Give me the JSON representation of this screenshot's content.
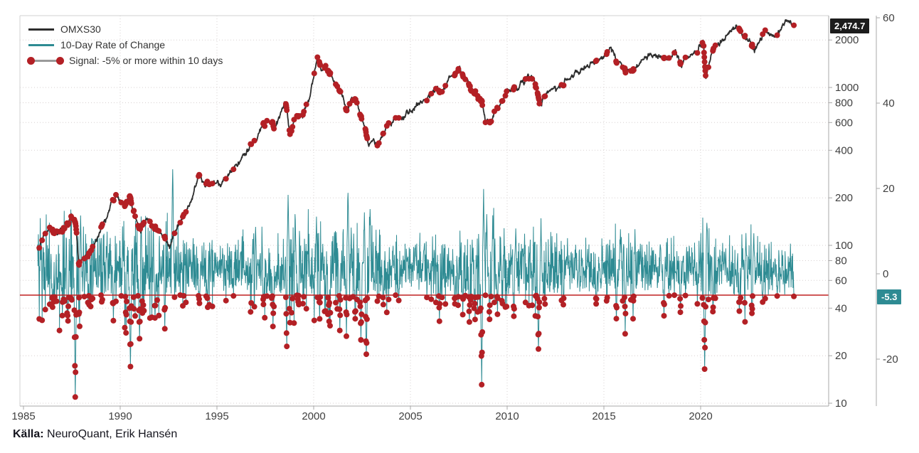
{
  "legend": {
    "items": [
      {
        "label": "OMXS30"
      },
      {
        "label": "10-Day Rate of Change"
      },
      {
        "label": "Signal: -5% or more within 10 days"
      }
    ]
  },
  "badges": {
    "price_last": "2,474.7",
    "roc_last": "-5.3"
  },
  "footer": {
    "source_label": "Källa:",
    "source_text": " NeuroQuant, Erik Hansén"
  },
  "chart_data": {
    "type": "line",
    "title": "",
    "x_range": [
      1985.72,
      2024.82
    ],
    "x_axis": {
      "ticks": [
        1985,
        1990,
        1995,
        2000,
        2005,
        2010,
        2015,
        2020
      ]
    },
    "price_axis": {
      "scale": "log",
      "ticks": [
        2000,
        1000,
        800,
        600,
        400,
        200,
        100,
        80,
        60,
        40,
        20,
        10
      ],
      "last_value": 2474.7
    },
    "roc_axis": {
      "ticks": [
        60,
        40,
        20,
        0,
        -20
      ],
      "last_value": -5.3
    },
    "signal_threshold": -5,
    "legend_position": "top-left",
    "grid": true,
    "series": [
      {
        "name": "OMXS30",
        "type": "line",
        "color": "#2d2d2d",
        "keypoints": [
          [
            1985.75,
            92
          ],
          [
            1986.1,
            118
          ],
          [
            1986.45,
            130
          ],
          [
            1986.75,
            118
          ],
          [
            1987.1,
            128
          ],
          [
            1987.55,
            152
          ],
          [
            1987.7,
            138
          ],
          [
            1987.85,
            80
          ],
          [
            1988.1,
            82
          ],
          [
            1988.6,
            100
          ],
          [
            1989.1,
            135
          ],
          [
            1989.55,
            185
          ],
          [
            1989.9,
            205
          ],
          [
            1990.2,
            175
          ],
          [
            1990.5,
            195
          ],
          [
            1990.8,
            150
          ],
          [
            1991.05,
            122
          ],
          [
            1991.35,
            152
          ],
          [
            1991.7,
            135
          ],
          [
            1992.1,
            120
          ],
          [
            1992.55,
            98
          ],
          [
            1992.75,
            118
          ],
          [
            1993.2,
            148
          ],
          [
            1993.7,
            195
          ],
          [
            1994.05,
            272
          ],
          [
            1994.4,
            238
          ],
          [
            1994.8,
            250
          ],
          [
            1995.2,
            242
          ],
          [
            1995.7,
            290
          ],
          [
            1996.2,
            340
          ],
          [
            1996.8,
            430
          ],
          [
            1997.4,
            580
          ],
          [
            1997.75,
            620
          ],
          [
            1997.95,
            545
          ],
          [
            1998.35,
            720
          ],
          [
            1998.55,
            815
          ],
          [
            1998.78,
            495
          ],
          [
            1999.05,
            640
          ],
          [
            1999.4,
            670
          ],
          [
            1999.75,
            800
          ],
          [
            2000.05,
            1280
          ],
          [
            2000.2,
            1480
          ],
          [
            2000.4,
            1290
          ],
          [
            2000.55,
            1390
          ],
          [
            2000.8,
            1230
          ],
          [
            2001.1,
            1010
          ],
          [
            2001.45,
            900
          ],
          [
            2001.72,
            690
          ],
          [
            2001.95,
            860
          ],
          [
            2002.25,
            810
          ],
          [
            2002.6,
            590
          ],
          [
            2002.85,
            445
          ],
          [
            2003.1,
            480
          ],
          [
            2003.25,
            420
          ],
          [
            2003.7,
            540
          ],
          [
            2004.1,
            610
          ],
          [
            2004.6,
            640
          ],
          [
            2005.1,
            720
          ],
          [
            2005.6,
            800
          ],
          [
            2006.1,
            920
          ],
          [
            2006.4,
            1010
          ],
          [
            2006.55,
            880
          ],
          [
            2007.0,
            1120
          ],
          [
            2007.55,
            1280
          ],
          [
            2007.85,
            1130
          ],
          [
            2008.15,
            980
          ],
          [
            2008.45,
            920
          ],
          [
            2008.7,
            800
          ],
          [
            2008.88,
            610
          ],
          [
            2009.15,
            590
          ],
          [
            2009.6,
            780
          ],
          [
            2010.05,
            950
          ],
          [
            2010.5,
            1020
          ],
          [
            2011.1,
            1170
          ],
          [
            2011.4,
            1120
          ],
          [
            2011.68,
            790
          ],
          [
            2011.95,
            880
          ],
          [
            2012.3,
            990
          ],
          [
            2012.55,
            950
          ],
          [
            2013.0,
            1110
          ],
          [
            2013.5,
            1210
          ],
          [
            2014.05,
            1340
          ],
          [
            2014.55,
            1400
          ],
          [
            2015.3,
            1730
          ],
          [
            2015.75,
            1480
          ],
          [
            2016.1,
            1270
          ],
          [
            2016.55,
            1350
          ],
          [
            2017.1,
            1530
          ],
          [
            2017.55,
            1640
          ],
          [
            2018.05,
            1580
          ],
          [
            2018.35,
            1540
          ],
          [
            2018.7,
            1660
          ],
          [
            2019.0,
            1410
          ],
          [
            2019.45,
            1580
          ],
          [
            2019.95,
            1790
          ],
          [
            2020.15,
            1880
          ],
          [
            2020.27,
            1160
          ],
          [
            2020.6,
            1680
          ],
          [
            2021.05,
            1950
          ],
          [
            2021.55,
            2280
          ],
          [
            2021.95,
            2440
          ],
          [
            2022.25,
            2090
          ],
          [
            2022.5,
            1980
          ],
          [
            2022.78,
            1710
          ],
          [
            2023.1,
            2080
          ],
          [
            2023.35,
            2230
          ],
          [
            2023.65,
            2120
          ],
          [
            2023.85,
            2080
          ],
          [
            2024.1,
            2330
          ],
          [
            2024.45,
            2580
          ],
          [
            2024.6,
            2460
          ],
          [
            2024.82,
            2474.7
          ]
        ]
      },
      {
        "name": "10-Day Rate of Change",
        "type": "line",
        "color": "#2e8b93",
        "mean": 1.1,
        "volatility_keypoints": [
          [
            1985.7,
            5.2
          ],
          [
            1987.5,
            5.8
          ],
          [
            1988.5,
            4.6
          ],
          [
            1990.0,
            5.2
          ],
          [
            1992.8,
            4.6
          ],
          [
            1994.0,
            3.6
          ],
          [
            1995.5,
            3.2
          ],
          [
            1997.0,
            4.4
          ],
          [
            1998.8,
            5.0
          ],
          [
            2000.0,
            5.2
          ],
          [
            2002.9,
            5.4
          ],
          [
            2003.8,
            3.8
          ],
          [
            2005.0,
            3.0
          ],
          [
            2006.4,
            3.6
          ],
          [
            2007.5,
            4.0
          ],
          [
            2008.8,
            6.0
          ],
          [
            2009.6,
            4.6
          ],
          [
            2010.5,
            3.8
          ],
          [
            2011.7,
            5.0
          ],
          [
            2012.5,
            3.6
          ],
          [
            2014.0,
            2.8
          ],
          [
            2015.8,
            3.8
          ],
          [
            2016.6,
            3.4
          ],
          [
            2017.5,
            2.6
          ],
          [
            2018.9,
            3.6
          ],
          [
            2019.5,
            3.0
          ],
          [
            2020.25,
            5.8
          ],
          [
            2020.8,
            3.6
          ],
          [
            2021.5,
            3.0
          ],
          [
            2022.5,
            3.8
          ],
          [
            2023.5,
            3.0
          ],
          [
            2024.8,
            2.8
          ]
        ],
        "spikes": [
          [
            1986.5,
            -8
          ],
          [
            1987.3,
            -11
          ],
          [
            1987.68,
            -28.5
          ],
          [
            1987.9,
            -13
          ],
          [
            1987.95,
            14
          ],
          [
            1988.4,
            -7
          ],
          [
            1989.65,
            -10
          ],
          [
            1990.3,
            -14
          ],
          [
            1990.52,
            -21
          ],
          [
            1991.0,
            -15
          ],
          [
            1991.08,
            13
          ],
          [
            1991.8,
            -10
          ],
          [
            1992.3,
            -12
          ],
          [
            1992.72,
            26
          ],
          [
            1994.1,
            -7.5
          ],
          [
            1994.5,
            -6.5
          ],
          [
            1997.0,
            12
          ],
          [
            1997.4,
            -7
          ],
          [
            1997.9,
            -12
          ],
          [
            1998.62,
            -17.5
          ],
          [
            1998.68,
            19
          ],
          [
            1999.05,
            13
          ],
          [
            1999.2,
            -7
          ],
          [
            2000.15,
            14
          ],
          [
            2000.3,
            -10
          ],
          [
            2000.8,
            -11
          ],
          [
            2001.35,
            -13
          ],
          [
            2001.7,
            -14
          ],
          [
            2001.78,
            20
          ],
          [
            2002.15,
            -12
          ],
          [
            2002.45,
            -15
          ],
          [
            2002.62,
            14
          ],
          [
            2002.72,
            -20
          ],
          [
            2002.92,
            15
          ],
          [
            2003.6,
            -7
          ],
          [
            2004.4,
            -7
          ],
          [
            2006.5,
            -11
          ],
          [
            2007.3,
            -7
          ],
          [
            2007.7,
            -9
          ],
          [
            2008.05,
            -12
          ],
          [
            2008.35,
            -9
          ],
          [
            2008.68,
            -25
          ],
          [
            2008.78,
            19
          ],
          [
            2008.95,
            14
          ],
          [
            2009.1,
            -11
          ],
          [
            2009.25,
            13
          ],
          [
            2009.5,
            -8
          ],
          [
            2010.35,
            -10
          ],
          [
            2010.45,
            11
          ],
          [
            2011.62,
            -17.5
          ],
          [
            2011.75,
            12
          ],
          [
            2012.9,
            -7
          ],
          [
            2014.6,
            -8
          ],
          [
            2015.65,
            -11
          ],
          [
            2015.85,
            10
          ],
          [
            2016.1,
            -13
          ],
          [
            2016.5,
            -9
          ],
          [
            2016.6,
            10
          ],
          [
            2018.1,
            -9
          ],
          [
            2018.95,
            -10
          ],
          [
            2020.2,
            -21.7
          ],
          [
            2020.32,
            13
          ],
          [
            2020.65,
            -8
          ],
          [
            2022.0,
            -9
          ],
          [
            2022.3,
            -10.5
          ],
          [
            2022.35,
            9
          ],
          [
            2022.65,
            -10.5
          ],
          [
            2022.75,
            9
          ],
          [
            2023.2,
            -7
          ],
          [
            2023.95,
            -6
          ]
        ]
      },
      {
        "name": "Signal: -5% or more within 10 days",
        "type": "scatter",
        "color": "#b32025",
        "rule": "10-day ROC <= -5%"
      }
    ],
    "colors": {
      "price_line": "#2d2d2d",
      "roc_line": "#2e8b93",
      "signal_dot": "#b32025",
      "threshold_line": "#c02020",
      "grid": "#d7d0d0",
      "border": "#d2d2d2",
      "axis": "#a9a9a9",
      "tick_text": "#404040",
      "badge_price_bg": "#1c1c1c",
      "badge_roc_bg": "#2e8b93",
      "legend_connector": "#9a9a9a"
    }
  }
}
